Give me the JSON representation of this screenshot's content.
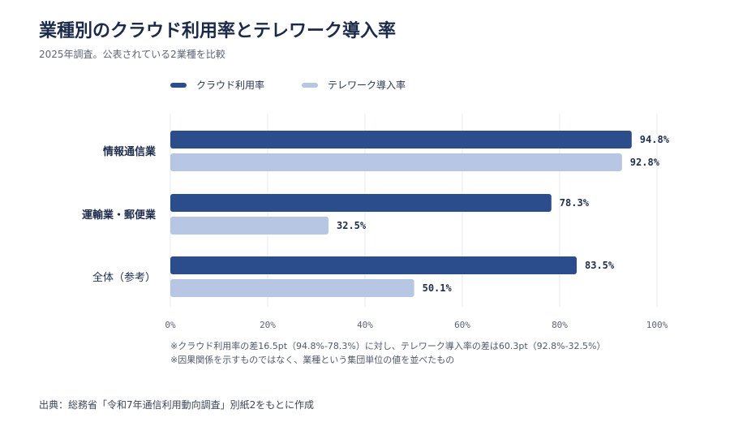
{
  "header": {
    "title": "業種別のクラウド利用率とテレワーク導入率",
    "subtitle": "2025年調査。公表されている2業種を比較"
  },
  "colors": {
    "cloud": "#2c4d8c",
    "telework": "#b6c6e3",
    "grid": "#e6e8ee"
  },
  "chart_data": {
    "type": "bar",
    "orientation": "horizontal",
    "categories": [
      "情報通信業",
      "運輸業・郵便業",
      "全体（参考）"
    ],
    "series": [
      {
        "name": "クラウド利用率",
        "values": [
          94.8,
          78.3,
          83.5
        ],
        "labels": [
          "94.8%",
          "78.3%",
          "83.5%"
        ]
      },
      {
        "name": "テレワーク導入率",
        "values": [
          92.8,
          32.5,
          50.1
        ],
        "labels": [
          "92.8%",
          "32.5%",
          "50.1%"
        ]
      }
    ],
    "xlim": [
      0,
      100
    ],
    "xticks": [
      "0%",
      "20%",
      "40%",
      "60%",
      "80%",
      "100%"
    ],
    "grid": true,
    "legend_position": "top"
  },
  "notes": [
    "※クラウド利用率の差16.5pt（94.8%-78.3%）に対し、テレワーク導入率の差は60.3pt（92.8%-32.5%）",
    "※因果関係を示すものではなく、業種という集団単位の値を並べたもの"
  ],
  "source": "出典：総務省「令和7年通信利用動向調査」別紙2をもとに作成"
}
